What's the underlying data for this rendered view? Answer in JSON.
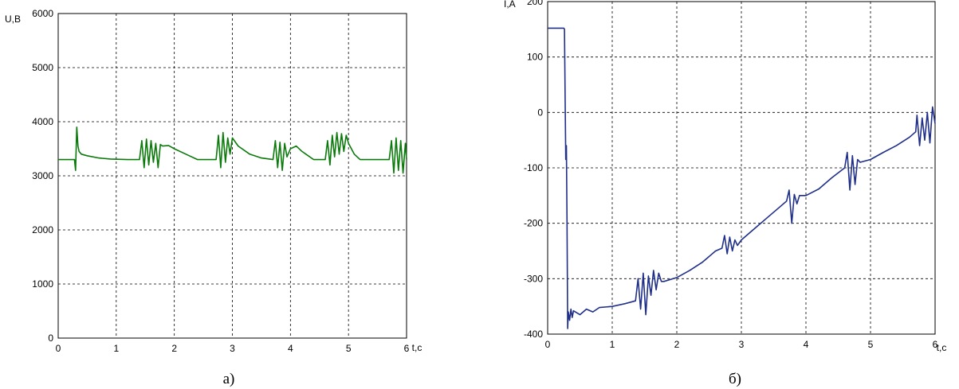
{
  "chart_data": [
    {
      "type": "line",
      "caption": "а)",
      "ylabel": "U,B",
      "xlabel": "t,c",
      "xlim": [
        0,
        6
      ],
      "ylim": [
        0,
        6000
      ],
      "x_ticks": [
        "0",
        "1",
        "2",
        "3",
        "4",
        "5",
        "6"
      ],
      "y_ticks": [
        "0",
        "1000",
        "2000",
        "3000",
        "4000",
        "5000",
        "6000"
      ],
      "grid": true,
      "color": "#0a7a0a",
      "series": [
        {
          "x": [
            0,
            0.28,
            0.3,
            0.32,
            0.34,
            0.36,
            0.4,
            0.5,
            0.7,
            0.9,
            1.2,
            1.4,
            1.44,
            1.48,
            1.52,
            1.56,
            1.6,
            1.64,
            1.68,
            1.72,
            1.76,
            1.8,
            1.9,
            2.0,
            2.2,
            2.4,
            2.6,
            2.72,
            2.76,
            2.8,
            2.84,
            2.88,
            2.92,
            2.96,
            3.0,
            3.1,
            3.3,
            3.5,
            3.7,
            3.74,
            3.78,
            3.82,
            3.86,
            3.9,
            3.94,
            4.0,
            4.1,
            4.2,
            4.4,
            4.6,
            4.64,
            4.68,
            4.72,
            4.76,
            4.8,
            4.84,
            4.88,
            4.92,
            4.96,
            5.0,
            5.1,
            5.2,
            5.4,
            5.6,
            5.7,
            5.74,
            5.78,
            5.82,
            5.86,
            5.9,
            5.94,
            5.98,
            6.0
          ],
          "y": [
            3300,
            3300,
            3100,
            3900,
            3550,
            3450,
            3400,
            3370,
            3330,
            3310,
            3300,
            3300,
            3650,
            3150,
            3680,
            3200,
            3650,
            3250,
            3600,
            3150,
            3580,
            3550,
            3560,
            3500,
            3400,
            3300,
            3300,
            3300,
            3750,
            3150,
            3800,
            3250,
            3700,
            3400,
            3700,
            3550,
            3400,
            3330,
            3300,
            3650,
            3150,
            3620,
            3100,
            3600,
            3350,
            3500,
            3550,
            3450,
            3300,
            3300,
            3650,
            3200,
            3750,
            3350,
            3800,
            3400,
            3780,
            3450,
            3750,
            3600,
            3400,
            3300,
            3300,
            3300,
            3300,
            3650,
            3050,
            3700,
            3100,
            3650,
            3050,
            3600,
            3300
          ]
        }
      ]
    },
    {
      "type": "line",
      "caption": "б)",
      "ylabel": "I,A",
      "xlabel": "t,c",
      "xlim": [
        0,
        6
      ],
      "ylim": [
        -400,
        200
      ],
      "x_ticks": [
        "0",
        "1",
        "2",
        "3",
        "4",
        "5",
        "6"
      ],
      "y_ticks": [
        "-400",
        "-300",
        "-200",
        "-100",
        "0",
        "100",
        "200"
      ],
      "grid": true,
      "color": "#1f2f8a",
      "series": [
        {
          "x": [
            0,
            0.25,
            0.26,
            0.27,
            0.28,
            0.29,
            0.3,
            0.31,
            0.32,
            0.34,
            0.36,
            0.38,
            0.4,
            0.5,
            0.6,
            0.7,
            0.8,
            1.0,
            1.2,
            1.36,
            1.4,
            1.44,
            1.48,
            1.52,
            1.56,
            1.6,
            1.64,
            1.68,
            1.72,
            1.76,
            1.8,
            2.0,
            2.2,
            2.4,
            2.6,
            2.7,
            2.74,
            2.78,
            2.82,
            2.86,
            2.9,
            2.94,
            3.0,
            3.2,
            3.4,
            3.6,
            3.7,
            3.74,
            3.78,
            3.82,
            3.86,
            3.9,
            4.0,
            4.2,
            4.4,
            4.6,
            4.64,
            4.68,
            4.72,
            4.76,
            4.8,
            4.84,
            5.0,
            5.2,
            5.4,
            5.6,
            5.7,
            5.72,
            5.76,
            5.8,
            5.84,
            5.88,
            5.92,
            5.96,
            6.0
          ],
          "y": [
            152,
            152,
            150,
            30,
            -85,
            -60,
            -200,
            -390,
            -360,
            -375,
            -355,
            -370,
            -358,
            -365,
            -355,
            -360,
            -352,
            -350,
            -345,
            -340,
            -300,
            -355,
            -290,
            -365,
            -295,
            -330,
            -285,
            -320,
            -290,
            -305,
            -305,
            -298,
            -285,
            -270,
            -250,
            -245,
            -222,
            -255,
            -225,
            -250,
            -230,
            -240,
            -230,
            -210,
            -190,
            -170,
            -160,
            -140,
            -200,
            -148,
            -165,
            -150,
            -150,
            -138,
            -118,
            -100,
            -72,
            -140,
            -78,
            -130,
            -85,
            -90,
            -85,
            -72,
            -60,
            -45,
            -35,
            -5,
            -60,
            -10,
            -50,
            0,
            -55,
            10,
            -20
          ]
        }
      ]
    }
  ]
}
